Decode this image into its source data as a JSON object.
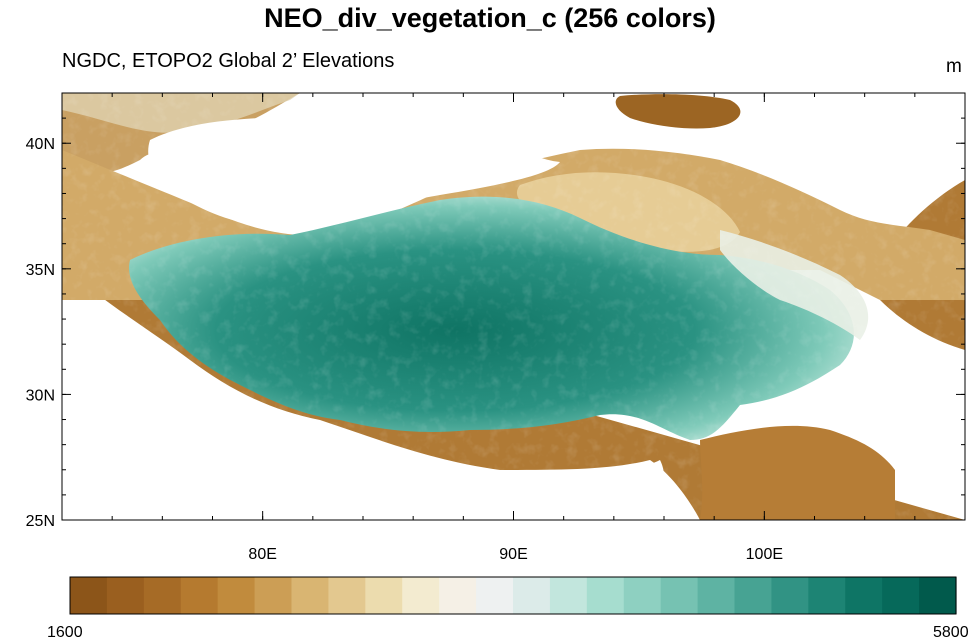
{
  "header": {
    "title": "NEO_div_vegetation_c (256 colors)",
    "subtitle": "NGDC, ETOPO2 Global 2’ Elevations",
    "units": "m"
  },
  "map": {
    "lat_range": [
      25,
      42
    ],
    "lon_range": [
      72,
      108
    ],
    "lat_ticks": [
      {
        "value": 25,
        "label": "25N"
      },
      {
        "value": 30,
        "label": "30N"
      },
      {
        "value": 35,
        "label": "35N"
      },
      {
        "value": 40,
        "label": "40N"
      }
    ],
    "lon_ticks": [
      {
        "value": 80,
        "label": "80E"
      },
      {
        "value": 90,
        "label": "90E"
      },
      {
        "value": 100,
        "label": "100E"
      }
    ]
  },
  "colorbar": {
    "min_label": "1600",
    "max_label": "5800",
    "colors": [
      "#8c5519",
      "#9a5f1f",
      "#a66b26",
      "#b57a2f",
      "#c18b3d",
      "#cc9e55",
      "#d9b572",
      "#e3c88f",
      "#ecdcae",
      "#f3ebd0",
      "#f5f0e6",
      "#eef1f1",
      "#dcebe9",
      "#c2e6dd",
      "#a6ddcf",
      "#8ed0c1",
      "#76c2b2",
      "#5eb3a3",
      "#47a393",
      "#319384",
      "#1d8474",
      "#0e7565",
      "#06695a",
      "#015a4c"
    ]
  }
}
